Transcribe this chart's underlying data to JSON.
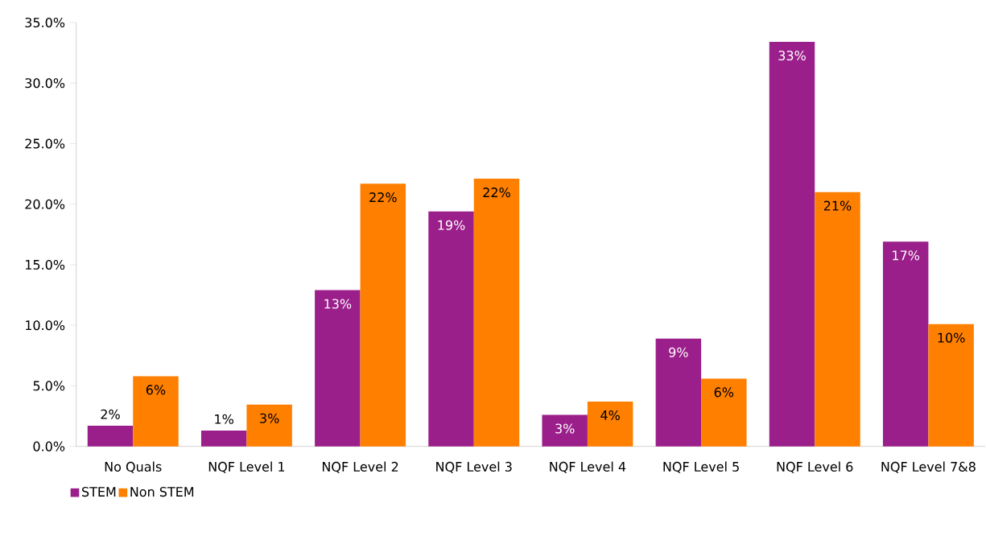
{
  "chart_data": {
    "type": "bar",
    "categories": [
      "No Quals",
      "NQF Level 1",
      "NQF Level 2",
      "NQF Level 3",
      "NQF Level 4",
      "NQF Level 5",
      "NQF Level 6",
      "NQF Level 7&8"
    ],
    "series": [
      {
        "name": "STEM",
        "color": "#9b1f8a",
        "values": [
          1.7,
          1.3,
          12.9,
          19.4,
          2.6,
          8.9,
          33.4,
          16.9
        ],
        "value_labels": [
          "2%",
          "1%",
          "13%",
          "19%",
          "3%",
          "9%",
          "33%",
          "17%"
        ]
      },
      {
        "name": "Non STEM",
        "color": "#ff7f00",
        "values": [
          5.8,
          3.45,
          21.7,
          22.1,
          3.7,
          5.6,
          21.0,
          10.1
        ],
        "value_labels": [
          "6%",
          "3%",
          "22%",
          "22%",
          "4%",
          "6%",
          "21%",
          "10%"
        ]
      }
    ],
    "ylim": [
      0,
      35
    ],
    "yticks": [
      {
        "value": 0,
        "label": "0.0%"
      },
      {
        "value": 5,
        "label": "5.0%"
      },
      {
        "value": 10,
        "label": "10.0%"
      },
      {
        "value": 15,
        "label": "15.0%"
      },
      {
        "value": 20,
        "label": "20.0%"
      },
      {
        "value": 25,
        "label": "25.0%"
      },
      {
        "value": 30,
        "label": "30.0%"
      },
      {
        "value": 35,
        "label": "35.0%"
      }
    ],
    "legend": "bottom left"
  }
}
